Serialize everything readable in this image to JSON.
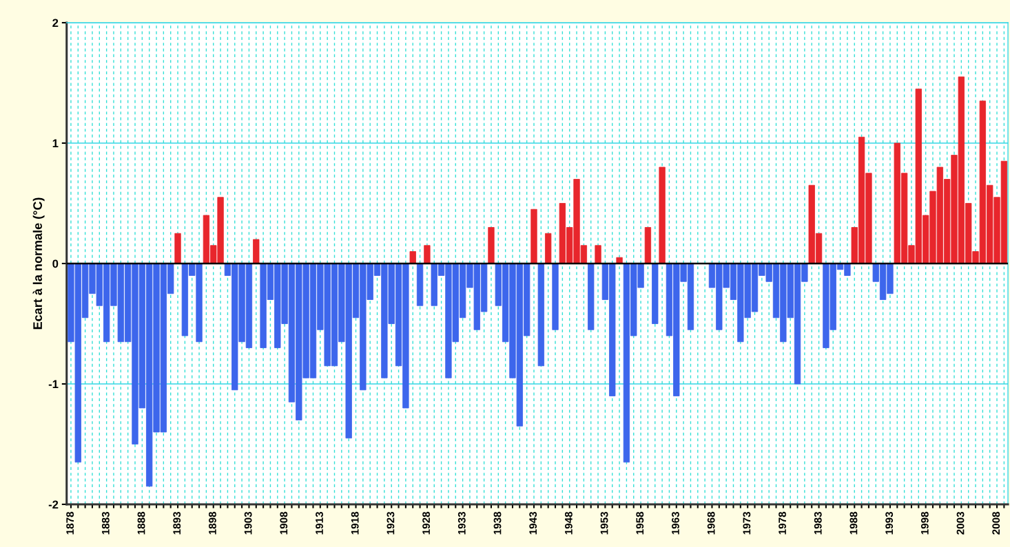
{
  "chart_data": {
    "type": "bar",
    "ylabel": "Ecart à la normale (°C)",
    "categories": [
      "1878",
      null,
      null,
      null,
      null,
      "1883",
      null,
      null,
      null,
      null,
      "1888",
      null,
      null,
      null,
      null,
      "1893",
      null,
      null,
      null,
      null,
      "1898",
      null,
      null,
      null,
      null,
      "1903",
      null,
      null,
      null,
      null,
      "1908",
      null,
      null,
      null,
      null,
      "1913",
      null,
      null,
      null,
      null,
      "1918",
      null,
      null,
      null,
      null,
      "1923",
      null,
      null,
      null,
      null,
      "1928",
      null,
      null,
      null,
      null,
      "1933",
      null,
      null,
      null,
      null,
      "1938",
      null,
      null,
      null,
      null,
      "1943",
      null,
      null,
      null,
      null,
      "1948",
      null,
      null,
      null,
      null,
      "1953",
      null,
      null,
      null,
      null,
      "1958",
      null,
      null,
      null,
      null,
      "1963",
      null,
      null,
      null,
      null,
      "1968",
      null,
      null,
      null,
      null,
      "1973",
      null,
      null,
      null,
      null,
      "1978",
      null,
      null,
      null,
      null,
      "1983",
      null,
      null,
      null,
      null,
      "1988",
      null,
      null,
      null,
      null,
      "1993",
      null,
      null,
      null,
      null,
      "1998",
      null,
      null,
      null,
      null,
      "2003",
      null,
      null,
      null,
      null,
      "2008",
      null
    ],
    "values": [
      -0.65,
      -1.65,
      -0.45,
      -0.25,
      -0.35,
      -0.65,
      -0.35,
      -0.65,
      -0.65,
      -1.5,
      -1.2,
      -1.85,
      -1.4,
      -1.4,
      -0.25,
      0.25,
      -0.6,
      -0.1,
      -0.65,
      0.4,
      0.15,
      0.55,
      -0.1,
      -1.05,
      -0.65,
      -0.7,
      0.2,
      -0.7,
      -0.3,
      -0.7,
      -0.5,
      -1.15,
      -1.3,
      -0.95,
      -0.95,
      -0.55,
      -0.85,
      -0.85,
      -0.65,
      -1.45,
      -0.45,
      -1.05,
      -0.3,
      -0.1,
      -0.95,
      -0.5,
      -0.85,
      -1.2,
      0.1,
      -0.35,
      0.15,
      -0.35,
      -0.1,
      -0.95,
      -0.65,
      -0.45,
      -0.2,
      -0.55,
      -0.4,
      0.3,
      -0.35,
      -0.65,
      -0.95,
      -1.35,
      -0.6,
      0.45,
      -0.85,
      0.25,
      -0.55,
      0.5,
      0.3,
      0.7,
      0.15,
      -0.55,
      0.15,
      -0.3,
      -1.1,
      0.05,
      -1.65,
      -0.6,
      -0.2,
      0.3,
      -0.5,
      0.8,
      -0.6,
      -1.1,
      -0.15,
      -0.55,
      0,
      0,
      -0.2,
      -0.55,
      -0.2,
      -0.3,
      -0.65,
      -0.45,
      -0.4,
      -0.1,
      -0.15,
      -0.45,
      -0.65,
      -0.45,
      -1.0,
      -0.15,
      0.65,
      0.25,
      -0.7,
      -0.55,
      -0.05,
      -0.1,
      0.3,
      1.05,
      0.75,
      -0.15,
      -0.3,
      -0.25,
      1.0,
      0.75,
      0.15,
      1.45,
      0.4,
      0.6,
      0.8,
      0.7,
      0.9,
      1.55,
      0.5,
      0.1,
      1.35,
      0.65,
      0.55,
      0.85
    ],
    "colors": [
      "#3d66ec",
      "#3d66ec",
      "#3d66ec",
      "#3d66ec",
      "#3d66ec",
      "#3d66ec",
      "#3d66ec",
      "#3d66ec",
      "#3d66ec",
      "#3d66ec",
      "#3d66ec",
      "#3d66ec",
      "#3d66ec",
      "#3d66ec",
      "#3d66ec",
      "#e8262c",
      "#3d66ec",
      "#3d66ec",
      "#3d66ec",
      "#e8262c",
      "#e8262c",
      "#e8262c",
      "#3d66ec",
      "#3d66ec",
      "#3d66ec",
      "#3d66ec",
      "#e8262c",
      "#3d66ec",
      "#3d66ec",
      "#3d66ec",
      "#3d66ec",
      "#3d66ec",
      "#3d66ec",
      "#3d66ec",
      "#3d66ec",
      "#3d66ec",
      "#3d66ec",
      "#3d66ec",
      "#3d66ec",
      "#3d66ec",
      "#3d66ec",
      "#3d66ec",
      "#3d66ec",
      "#3d66ec",
      "#3d66ec",
      "#3d66ec",
      "#3d66ec",
      "#3d66ec",
      "#e8262c",
      "#3d66ec",
      "#e8262c",
      "#3d66ec",
      "#3d66ec",
      "#3d66ec",
      "#3d66ec",
      "#3d66ec",
      "#3d66ec",
      "#3d66ec",
      "#3d66ec",
      "#e8262c",
      "#3d66ec",
      "#3d66ec",
      "#3d66ec",
      "#3d66ec",
      "#3d66ec",
      "#e8262c",
      "#3d66ec",
      "#e8262c",
      "#3d66ec",
      "#e8262c",
      "#e8262c",
      "#e8262c",
      "#e8262c",
      "#3d66ec",
      "#e8262c",
      "#3d66ec",
      "#3d66ec",
      "#e8262c",
      "#3d66ec",
      "#3d66ec",
      "#3d66ec",
      "#e8262c",
      "#3d66ec",
      "#e8262c",
      "#3d66ec",
      "#3d66ec",
      "#3d66ec",
      "#3d66ec",
      "#3d66ec",
      "#3d66ec",
      "#3d66ec",
      "#3d66ec",
      "#3d66ec",
      "#3d66ec",
      "#3d66ec",
      "#3d66ec",
      "#3d66ec",
      "#3d66ec",
      "#3d66ec",
      "#3d66ec",
      "#3d66ec",
      "#3d66ec",
      "#3d66ec",
      "#3d66ec",
      "#e8262c",
      "#e8262c",
      "#3d66ec",
      "#3d66ec",
      "#3d66ec",
      "#3d66ec",
      "#e8262c",
      "#e8262c",
      "#e8262c",
      "#3d66ec",
      "#3d66ec",
      "#3d66ec",
      "#e8262c",
      "#e8262c",
      "#e8262c",
      "#e8262c",
      "#e8262c",
      "#e8262c",
      "#e8262c",
      "#e8262c",
      "#e8262c",
      "#e8262c",
      "#e8262c",
      "#e8262c",
      "#e8262c",
      "#e8262c",
      "#e8262c",
      "#e8262c"
    ],
    "ylim": [
      -2,
      2
    ],
    "yticks": [
      -2,
      -1,
      0,
      1,
      2
    ],
    "ref_lines": [
      {
        "axis": "y",
        "value": 0,
        "color": "#000000"
      }
    ],
    "grid": true
  }
}
